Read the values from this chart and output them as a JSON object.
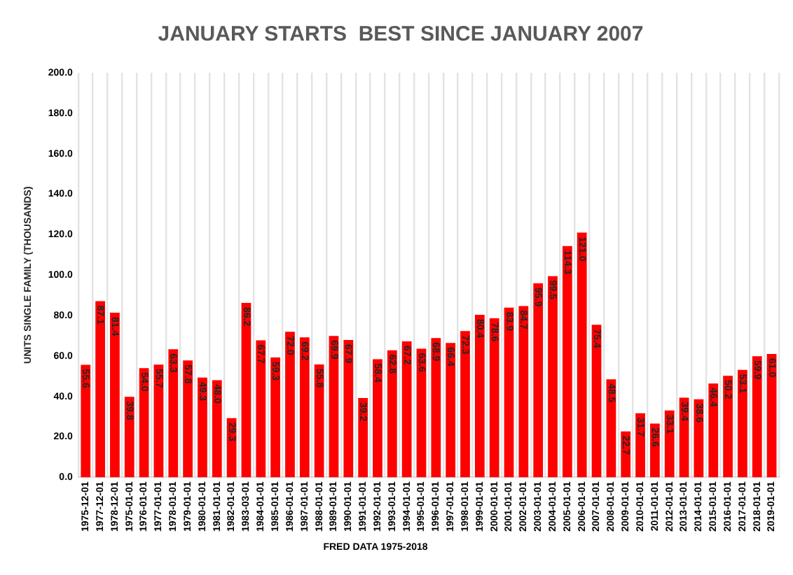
{
  "chart_data": {
    "type": "bar",
    "title": "JANUARY STARTS  BEST SINCE JANUARY 2007",
    "ylabel": "UNITS SINGLE FAMILY (THOUSANDS)",
    "categories": [
      "1975-12-01",
      "1977-12-01",
      "1978-12-01",
      "1975-01-01",
      "1976-01-01",
      "1977-01-01",
      "1978-01-01",
      "1979-01-01",
      "1980-01-01",
      "1981-01-01",
      "1982-01-01",
      "1983-03-01",
      "1984-01-01",
      "1985-01-01",
      "1986-01-01",
      "1987-01-01",
      "1988-01-01",
      "1989-01-01",
      "1990-01-01",
      "1991-01-01",
      "1992-01-01",
      "1993-01-01",
      "1994-01-01",
      "1995-01-01",
      "1996-01-01",
      "1997-01-01",
      "1998-01-01",
      "1999-01-01",
      "2000-01-01",
      "2001-01-01",
      "2002-01-01",
      "2003-01-01",
      "2004-01-01",
      "2005-01-01",
      "2006-01-01",
      "2007-01-01",
      "2008-01-01",
      "2009-01-01",
      "2010-01-01",
      "2011-01-01",
      "2012-01-01",
      "2013-01-01",
      "2014-01-01",
      "2015-01-01",
      "2016-01-01",
      "2017-01-01",
      "2018-01-01",
      "2019-01-01"
    ],
    "values": [
      55.6,
      87.1,
      81.4,
      39.8,
      54.0,
      55.7,
      63.3,
      57.8,
      49.3,
      48.0,
      29.3,
      86.2,
      67.7,
      59.3,
      72.0,
      69.2,
      55.8,
      69.9,
      67.9,
      39.2,
      58.4,
      62.8,
      67.2,
      63.6,
      68.9,
      66.4,
      72.3,
      80.4,
      78.6,
      83.9,
      84.7,
      95.9,
      99.5,
      114.3,
      121.0,
      75.4,
      48.5,
      22.7,
      31.7,
      26.6,
      33.1,
      39.4,
      38.6,
      46.4,
      50.2,
      53.1,
      59.9,
      61.0
    ],
    "value_labels": [
      "55.6",
      "87.1",
      "81.4",
      "39.8",
      "54.0",
      "55.7",
      "63.3",
      "57.8",
      "49.3",
      "48.0",
      "29.3",
      "86.2",
      "67.7",
      "59.3",
      "72.0",
      "69.2",
      "55.8",
      "69.9",
      "67.9",
      "39.2",
      "58.4",
      "62.8",
      "67.2",
      "63.6",
      "68.9",
      "66.4",
      "72.3",
      "80.4",
      "78.6",
      "83.9",
      "84.7",
      "95.9",
      "99.5",
      "114.3",
      "121.0",
      "75.4",
      "48.5",
      "22.7",
      "31.7",
      "26.6",
      "33.1",
      "39.4",
      "38.6",
      "46.4",
      "50.2",
      "53.1",
      "59.9",
      "61.0"
    ],
    "color": "#ff0000",
    "ylim": [
      0,
      200
    ],
    "yticks": [
      {
        "value": 0,
        "label": "0.0"
      },
      {
        "value": 20,
        "label": "20.0"
      },
      {
        "value": 40,
        "label": "40.0"
      },
      {
        "value": 60,
        "label": "60.0"
      },
      {
        "value": 80,
        "label": "80.0"
      },
      {
        "value": 100,
        "label": "100.0"
      },
      {
        "value": 120,
        "label": "120.0"
      },
      {
        "value": 140,
        "label": "140.0"
      },
      {
        "value": 160,
        "label": "160.0"
      },
      {
        "value": 180,
        "label": "180.0"
      },
      {
        "value": 200,
        "label": "200.0"
      }
    ],
    "grid": "x",
    "annotations": [
      "FRED DATA 1975-2018"
    ]
  }
}
